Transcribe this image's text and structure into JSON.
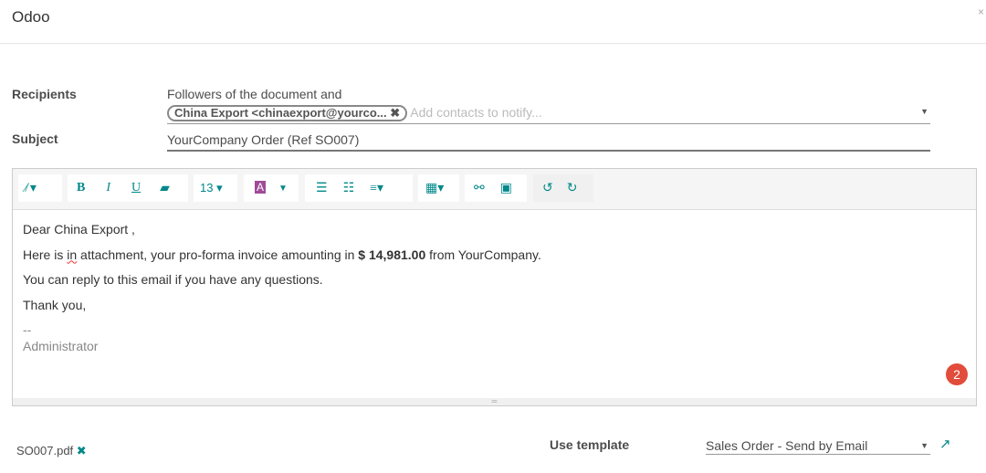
{
  "header": {
    "title": "Odoo",
    "close": "×"
  },
  "recipients": {
    "label": "Recipients",
    "prefix": "Followers of the document and",
    "tag": "China Export <chinaexport@yourco...",
    "tag_remove": "✖",
    "placeholder": "Add contacts to notify..."
  },
  "subject": {
    "label": "Subject",
    "value": "YourCompany Order (Ref SO007)"
  },
  "toolbar": {
    "font_size": "13"
  },
  "body": {
    "greeting_pre": "Dear China Export",
    "greeting_post": " ,",
    "line2_a": "Here is ",
    "line2_in": "in",
    "line2_b": " attachment, your pro-forma invoice amounting in ",
    "amount": "$ 14,981.00",
    "line2_c": " from YourCompany.",
    "line3": "You can reply to this email if you have any questions.",
    "line4": "Thank you,",
    "sig_sep": "--",
    "signature": "Administrator"
  },
  "badge": "2",
  "attachment": {
    "name": "SO007.pdf",
    "remove": "✖"
  },
  "template": {
    "label": "Use template",
    "value": "Sales Order - Send by Email"
  },
  "colors": {
    "accent": "#00888a",
    "badge": "#e24c3b"
  }
}
